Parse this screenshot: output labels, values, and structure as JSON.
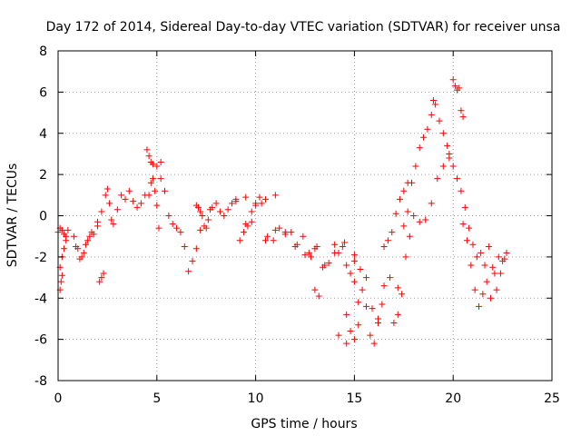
{
  "chart_data": {
    "type": "scatter",
    "title": "Day 172 of 2014, Sidereal Day-to-day VTEC variation (SDTVAR) for receiver unsa",
    "xlabel": "GPS time / hours",
    "ylabel": "SDTVAR / TECUs",
    "xlim": [
      0,
      25
    ],
    "ylim": [
      -8,
      8
    ],
    "xticks": [
      0,
      5,
      10,
      15,
      20,
      25
    ],
    "yticks": [
      -8,
      -6,
      -4,
      -2,
      0,
      2,
      4,
      6,
      8
    ],
    "xtick_labels": [
      "0",
      "5",
      "10",
      "15",
      "20",
      "25"
    ],
    "ytick_labels": [
      "-8",
      "-6",
      "-4",
      "-2",
      "0",
      "2",
      "4",
      "6",
      "8"
    ],
    "grid": true,
    "marker": "+",
    "color": "#ff0000",
    "series": [
      {
        "name": "SDTVAR",
        "x": [
          0.0,
          0.1,
          0.2,
          0.3,
          0.4,
          0.5,
          0.1,
          0.2,
          0.3,
          0.4,
          0.1,
          0.15,
          0.2,
          0.8,
          1.0,
          1.2,
          1.4,
          1.6,
          1.8,
          2.0,
          0.9,
          1.1,
          1.3,
          1.5,
          1.7,
          2.0,
          2.2,
          2.4,
          2.5,
          2.6,
          2.7,
          2.8,
          3.0,
          3.2,
          3.4,
          3.6,
          3.8,
          4.0,
          4.2,
          4.4,
          2.1,
          2.2,
          2.3,
          4.5,
          4.6,
          4.7,
          4.8,
          5.0,
          5.2,
          4.6,
          4.7,
          4.8,
          4.9,
          5.0,
          5.1,
          5.2,
          5.4,
          5.6,
          5.8,
          6.0,
          6.2,
          6.4,
          6.6,
          6.8,
          7.0,
          7.2,
          7.0,
          7.1,
          7.2,
          7.3,
          7.4,
          7.5,
          7.6,
          7.7,
          7.8,
          8.0,
          8.2,
          8.4,
          8.6,
          8.8,
          9.0,
          9.2,
          9.4,
          9.6,
          9.8,
          10.0,
          10.2,
          9.5,
          9.8,
          10.0,
          10.3,
          10.6,
          10.9,
          11.2,
          11.5,
          11.8,
          12.1,
          12.4,
          12.7,
          10.5,
          11.0,
          11.5,
          12.0,
          12.5,
          13.0,
          13.5,
          14.0,
          14.5,
          15.0,
          12.8,
          13.1,
          13.4,
          13.7,
          14.0,
          14.2,
          14.4,
          14.6,
          14.8,
          15.0,
          14.6,
          14.8,
          15.0,
          15.2,
          15.4,
          15.6,
          15.8,
          16.0,
          16.2,
          15.0,
          15.3,
          15.6,
          15.9,
          16.2,
          16.5,
          16.8,
          17.0,
          17.2,
          17.4,
          17.6,
          17.8,
          16.5,
          16.7,
          16.9,
          17.1,
          17.3,
          17.5,
          17.7,
          17.5,
          17.7,
          17.9,
          18.1,
          18.3,
          18.5,
          18.7,
          18.9,
          19.1,
          19.3,
          19.5,
          19.7,
          18.0,
          18.3,
          18.6,
          18.9,
          19.2,
          19.5,
          19.8,
          20.0,
          20.1,
          20.2,
          20.3,
          20.4,
          20.5,
          19.8,
          20.0,
          20.2,
          20.4,
          20.6,
          20.8,
          21.0,
          21.2,
          21.4,
          21.6,
          21.8,
          22.0,
          22.2,
          22.4,
          22.6,
          20.5,
          20.7,
          20.9,
          21.1,
          21.3,
          21.5,
          21.7,
          21.9,
          22.1,
          22.3,
          22.5,
          22.7,
          9.0,
          9.5,
          10.5,
          11.0,
          13.0,
          13.2,
          14.2,
          14.6,
          15.2,
          16.4,
          17.2,
          19.0
        ],
        "y": [
          -0.8,
          -0.6,
          -0.7,
          -0.9,
          -1.0,
          -0.7,
          -2.5,
          -2.0,
          -1.6,
          -1.2,
          -3.6,
          -3.2,
          -2.9,
          -1.0,
          -1.6,
          -2.0,
          -1.4,
          -1.0,
          -0.9,
          -0.5,
          -1.5,
          -2.1,
          -1.8,
          -1.2,
          -0.8,
          -0.3,
          0.2,
          1.0,
          1.3,
          0.6,
          -0.2,
          -0.4,
          0.3,
          1.0,
          0.8,
          1.2,
          0.7,
          0.4,
          0.6,
          1.0,
          -3.2,
          -3.0,
          -2.8,
          3.2,
          2.9,
          2.6,
          2.5,
          2.4,
          2.6,
          1.0,
          1.6,
          1.8,
          1.2,
          0.5,
          -0.6,
          1.8,
          1.2,
          0.0,
          -0.4,
          -0.6,
          -0.8,
          -1.5,
          -2.7,
          -2.2,
          -1.6,
          -0.7,
          0.5,
          0.4,
          0.2,
          0.0,
          -0.5,
          -0.6,
          -0.2,
          0.3,
          0.4,
          0.6,
          0.2,
          0.0,
          0.3,
          0.6,
          0.7,
          -1.2,
          -0.8,
          -0.5,
          0.2,
          0.6,
          0.9,
          -0.4,
          -0.3,
          0.5,
          0.6,
          -1.0,
          -1.2,
          -0.6,
          -0.9,
          -0.8,
          -1.4,
          -1.0,
          -1.8,
          -1.2,
          -0.7,
          -0.8,
          -1.5,
          -1.9,
          -1.6,
          -2.4,
          -1.8,
          -1.3,
          -2.2,
          -2.0,
          -1.5,
          -2.5,
          -2.3,
          -1.4,
          -1.8,
          -1.5,
          -2.4,
          -2.8,
          -3.2,
          -4.8,
          -5.6,
          -6.0,
          -4.2,
          -3.6,
          -4.4,
          -5.8,
          -6.2,
          -5.0,
          -1.9,
          -2.6,
          -3.0,
          -4.5,
          -5.2,
          -3.4,
          -3.0,
          -5.2,
          -4.8,
          -3.8,
          -2.0,
          -1.0,
          -1.5,
          -1.2,
          -0.8,
          0.1,
          0.8,
          1.2,
          1.6,
          -0.5,
          0.2,
          1.6,
          2.4,
          3.3,
          3.8,
          4.2,
          4.9,
          5.4,
          4.6,
          4.0,
          3.4,
          0.0,
          -0.3,
          -0.2,
          0.6,
          1.8,
          2.4,
          3.0,
          6.6,
          6.3,
          6.1,
          6.2,
          5.1,
          4.8,
          2.8,
          2.4,
          1.8,
          1.2,
          0.4,
          -0.6,
          -1.4,
          -2.0,
          -1.8,
          -2.4,
          -1.5,
          -2.5,
          -3.6,
          -2.8,
          -2.1,
          -0.4,
          -1.2,
          -2.4,
          -3.6,
          -4.4,
          -3.8,
          -3.2,
          -4.0,
          -2.8,
          -2.0,
          -2.2,
          -1.8,
          0.8,
          0.9,
          0.8,
          1.0,
          -3.6,
          -3.9,
          -5.8,
          -6.2,
          -5.3,
          -4.3,
          -3.5,
          5.6
        ]
      }
    ]
  }
}
